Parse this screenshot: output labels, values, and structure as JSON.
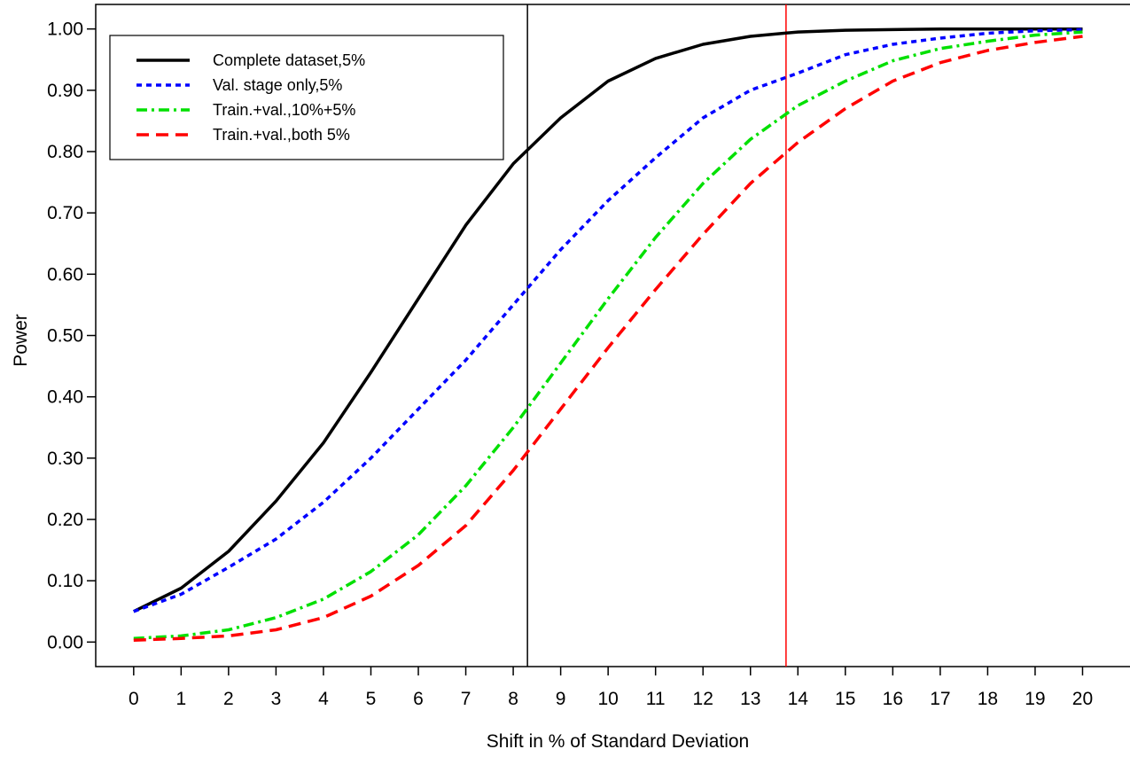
{
  "chart_data": {
    "type": "line",
    "title": "",
    "xlabel": "Shift in % of Standard Deviation",
    "ylabel": "Power",
    "xlim": [
      -0.8,
      21.0
    ],
    "ylim": [
      -0.04,
      1.04
    ],
    "x_ticks": [
      "0",
      "1",
      "2",
      "3",
      "4",
      "5",
      "6",
      "7",
      "8",
      "9",
      "10",
      "11",
      "12",
      "13",
      "14",
      "15",
      "16",
      "17",
      "18",
      "19",
      "20"
    ],
    "y_ticks": [
      "0.00",
      "0.10",
      "0.20",
      "0.30",
      "0.40",
      "0.50",
      "0.60",
      "0.70",
      "0.80",
      "0.90",
      "1.00"
    ],
    "grid": false,
    "legend_position": "top-left",
    "x": [
      0,
      1,
      2,
      3,
      4,
      5,
      6,
      7,
      8,
      9,
      10,
      11,
      12,
      13,
      14,
      15,
      16,
      17,
      18,
      19,
      20
    ],
    "series": [
      {
        "name": "Complete dataset,5%",
        "color": "#000000",
        "dash": "solid",
        "values": [
          0.05,
          0.088,
          0.148,
          0.23,
          0.325,
          0.44,
          0.56,
          0.68,
          0.78,
          0.855,
          0.915,
          0.952,
          0.975,
          0.988,
          0.995,
          0.998,
          0.999,
          1.0,
          1.0,
          1.0,
          1.0
        ]
      },
      {
        "name": "Val. stage only,5%",
        "color": "#0000ff",
        "dash": "dotted",
        "values": [
          0.05,
          0.078,
          0.122,
          0.168,
          0.228,
          0.3,
          0.38,
          0.46,
          0.55,
          0.64,
          0.72,
          0.79,
          0.855,
          0.9,
          0.928,
          0.958,
          0.975,
          0.985,
          0.993,
          0.997,
          0.999
        ]
      },
      {
        "name": "Train.+val.,10%+5%",
        "color": "#00e000",
        "dash": "dashdot",
        "values": [
          0.006,
          0.01,
          0.02,
          0.04,
          0.07,
          0.115,
          0.175,
          0.255,
          0.35,
          0.455,
          0.56,
          0.66,
          0.748,
          0.82,
          0.875,
          0.915,
          0.948,
          0.968,
          0.98,
          0.99,
          0.995
        ]
      },
      {
        "name": "Train.+val.,both 5%",
        "color": "#ff0000",
        "dash": "dashed",
        "values": [
          0.003,
          0.006,
          0.01,
          0.02,
          0.04,
          0.075,
          0.125,
          0.19,
          0.28,
          0.38,
          0.48,
          0.575,
          0.665,
          0.748,
          0.815,
          0.87,
          0.915,
          0.945,
          0.965,
          0.978,
          0.988
        ]
      }
    ],
    "reference_lines": [
      {
        "x": 8.3,
        "color": "#000000"
      },
      {
        "x": 13.75,
        "color": "#ff0000"
      }
    ]
  }
}
